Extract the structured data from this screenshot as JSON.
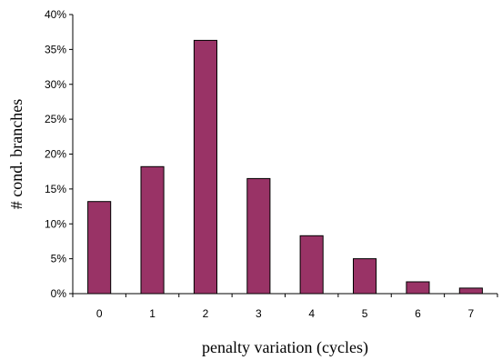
{
  "chart_data": {
    "type": "bar",
    "categories": [
      "0",
      "1",
      "2",
      "3",
      "4",
      "5",
      "6",
      "7"
    ],
    "values": [
      13.2,
      18.2,
      36.3,
      16.5,
      8.3,
      5.0,
      1.7,
      0.8
    ],
    "unit": "%",
    "xlabel": "penalty variation (cycles)",
    "ylabel": "# cond. branches",
    "ylim": [
      0,
      40
    ],
    "yticks": [
      "0%",
      "5%",
      "10%",
      "15%",
      "20%",
      "25%",
      "30%",
      "35%",
      "40%"
    ],
    "ytick_values": [
      0,
      5,
      10,
      15,
      20,
      25,
      30,
      35,
      40
    ],
    "bar_color": "#993366",
    "grid": false,
    "legend": "none"
  }
}
